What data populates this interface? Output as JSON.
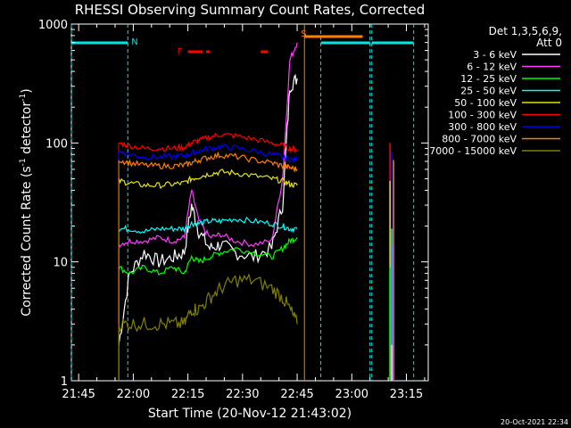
{
  "chart_data": {
    "type": "line",
    "title": "RHESSI Observing Summary Count Rates, Corrected",
    "xlabel": "Start Time (20-Nov-12 21:43:02)",
    "ylabel_main": "Corrected Count Rate (s",
    "ylabel_sup1": "-1",
    "ylabel_mid": " detector",
    "ylabel_sup2": "-1",
    "ylabel_end": ")",
    "y_scale": "log",
    "ylim": [
      1,
      1000
    ],
    "xlim_minutes_after_start": [
      0,
      98
    ],
    "x_tick_labels": [
      "21:45",
      "22:00",
      "22:15",
      "22:30",
      "22:45",
      "23:00",
      "23:15"
    ],
    "x_tick_minutes": [
      2,
      17,
      32,
      47,
      62,
      77,
      92
    ],
    "y_tick_labels": [
      "1",
      "10",
      "100",
      "1000"
    ],
    "y_ticks": [
      1,
      10,
      100,
      1000
    ],
    "legend_title_1": "Det 1,3,5,6,9,",
    "legend_title_2": "Att 0",
    "legend_position": "right",
    "footer_date": "20-Oct-2021 22:34",
    "flags": {
      "night_label": "N",
      "flare_label": "F",
      "saa_label": "S",
      "night_color": "#00e5e5",
      "flare_color": "#ff0000",
      "saa_color": "#ff7f00",
      "night_intervals": [
        [
          0,
          15.5
        ],
        [
          68.5,
          82
        ],
        [
          82.5,
          94
        ]
      ],
      "flare_intervals": [
        [
          32,
          36
        ],
        [
          37,
          38
        ],
        [
          52,
          54
        ]
      ],
      "saa_intervals": [
        [
          64,
          80
        ]
      ]
    },
    "data_gaps_minutes": [
      [
        0,
        12
      ],
      [
        62,
        80
      ],
      [
        82,
        97
      ]
    ],
    "series": [
      {
        "name": "3 - 6 keV",
        "color": "#ffffff",
        "x": [
          13,
          16,
          20,
          24,
          28,
          31,
          33,
          35,
          38,
          41,
          45,
          50,
          55,
          58,
          60,
          62
        ],
        "y": [
          2,
          8,
          12,
          10,
          11,
          12,
          30,
          18,
          13,
          14,
          12,
          11,
          13,
          30,
          300,
          350
        ]
      },
      {
        "name": "6 - 12 keV",
        "color": "#ff3cff",
        "x": [
          13,
          16,
          20,
          24,
          28,
          31,
          33,
          35,
          38,
          41,
          45,
          50,
          55,
          58,
          60,
          62
        ],
        "y": [
          14,
          15,
          15,
          16,
          15,
          16,
          40,
          22,
          16,
          17,
          15,
          14,
          15,
          50,
          500,
          700
        ]
      },
      {
        "name": "12 - 25 keV",
        "color": "#00ff00",
        "x": [
          13,
          16,
          20,
          24,
          28,
          31,
          33,
          35,
          38,
          41,
          45,
          50,
          55,
          58,
          60,
          62
        ],
        "y": [
          9,
          8,
          9,
          8,
          9,
          8,
          11,
          10,
          11,
          12,
          13,
          12,
          11,
          13,
          15,
          16
        ]
      },
      {
        "name": "25 - 50 keV",
        "color": "#00ffff",
        "x": [
          13,
          16,
          20,
          24,
          28,
          31,
          33,
          35,
          38,
          41,
          45,
          50,
          55,
          58,
          60,
          62
        ],
        "y": [
          19,
          19,
          18,
          19,
          19,
          19,
          21,
          21,
          22,
          22,
          23,
          22,
          21,
          20,
          19,
          19
        ]
      },
      {
        "name": "50 - 100 keV",
        "color": "#e5e500",
        "x": [
          13,
          16,
          20,
          24,
          28,
          31,
          33,
          35,
          38,
          41,
          45,
          50,
          55,
          58,
          60,
          62
        ],
        "y": [
          48,
          46,
          44,
          44,
          45,
          46,
          50,
          52,
          55,
          57,
          56,
          53,
          50,
          48,
          45,
          44
        ]
      },
      {
        "name": "100 - 300 keV",
        "color": "#ff0000",
        "x": [
          13,
          16,
          20,
          24,
          28,
          31,
          33,
          35,
          38,
          41,
          45,
          50,
          55,
          58,
          60,
          62
        ],
        "y": [
          100,
          95,
          90,
          90,
          90,
          92,
          100,
          105,
          112,
          118,
          115,
          108,
          100,
          95,
          90,
          88
        ]
      },
      {
        "name": "300 - 800 keV",
        "color": "#0000ff",
        "x": [
          13,
          16,
          20,
          24,
          28,
          31,
          33,
          35,
          38,
          41,
          45,
          50,
          55,
          58,
          60,
          62
        ],
        "y": [
          85,
          80,
          76,
          76,
          77,
          78,
          82,
          86,
          90,
          93,
          91,
          86,
          80,
          76,
          73,
          72
        ]
      },
      {
        "name": "800 - 7000 keV",
        "color": "#ff7f00",
        "x": [
          13,
          16,
          20,
          24,
          28,
          31,
          33,
          35,
          38,
          41,
          45,
          50,
          55,
          58,
          60,
          62
        ],
        "y": [
          72,
          68,
          65,
          64,
          64,
          65,
          68,
          72,
          76,
          79,
          77,
          72,
          68,
          64,
          62,
          60
        ]
      },
      {
        "name": "7000 - 15000 keV",
        "color": "#808000",
        "x": [
          13,
          16,
          20,
          24,
          28,
          31,
          33,
          35,
          38,
          41,
          45,
          50,
          55,
          58,
          60,
          62
        ],
        "y": [
          3,
          3,
          3,
          3,
          3,
          3,
          4,
          4,
          5,
          6,
          7,
          7,
          6,
          5,
          4,
          3
        ]
      }
    ],
    "post_gap_series_color_order": [
      "#ff0000",
      "#0000ff",
      "#ff7f00",
      "#e5e500",
      "#00ffff",
      "#ff3cff",
      "#00ff00",
      "#ffffff"
    ]
  }
}
